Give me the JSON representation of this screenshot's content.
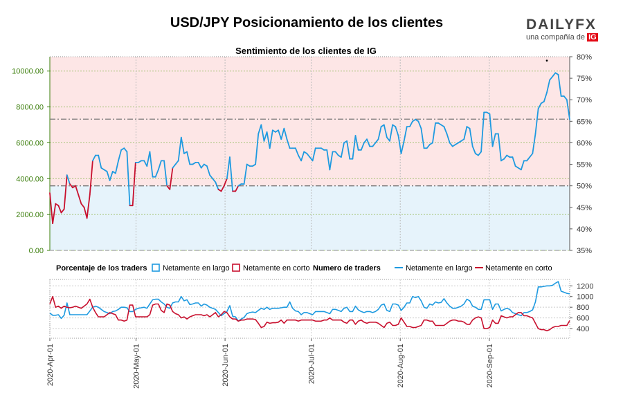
{
  "title": "USD/JPY Posicionamiento de los clientes",
  "logo": {
    "brand": "DAILYFX",
    "tagline": "una compañía de",
    "tagline_mark": "IG"
  },
  "colors": {
    "long": "#1e9ae0",
    "short": "#c8102e",
    "upper_fill": "#fde6e6",
    "lower_fill": "#e6f3fb",
    "left_axis": "#3a7d0a",
    "grid": "#a8c47a"
  },
  "chart_data": [
    {
      "type": "line",
      "title": "Sentimiento de los clientes de IG",
      "x_start": "2020-04-01",
      "x_end": "2020-09-29",
      "left_axis": {
        "ticks": [
          "0.00",
          "2000.00",
          "4000.00",
          "6000.00",
          "8000.00",
          "10000.00"
        ],
        "ylim": [
          0,
          10800
        ]
      },
      "right_axis": {
        "ticks": [
          "35%",
          "40%",
          "45%",
          "50%",
          "55%",
          "60%",
          "65%",
          "70%",
          "75%",
          "80%"
        ],
        "ylim": [
          35,
          80
        ]
      },
      "reference_lines": [
        50,
        65.5
      ],
      "series": [
        {
          "name": "price",
          "values": [
            3200,
            1500,
            2600,
            2500,
            2100,
            2300,
            4200,
            3700,
            3500,
            3600,
            3100,
            2600,
            2400,
            1800,
            3100,
            5000,
            5300,
            5300,
            4600,
            4500,
            4400,
            3900,
            4400,
            4300,
            5000,
            5600,
            5700,
            5500,
            2500,
            2500,
            4900,
            4900,
            5000,
            5000,
            4700,
            5500,
            4100,
            4100,
            4500,
            5000,
            5000,
            3600,
            3400,
            4600,
            4800,
            5000,
            6300,
            5400,
            5500,
            4800,
            4800,
            4900,
            4900,
            4600,
            4800,
            4700,
            4200,
            4000,
            3800,
            3400,
            3300,
            3600,
            4000,
            5200,
            3300,
            3300,
            3600,
            3700,
            3700,
            4800,
            4700,
            4700,
            4800,
            6500,
            7000,
            6100,
            6600,
            5700,
            6700,
            6600,
            6700,
            6200,
            6800,
            6200,
            5700,
            5700,
            5700,
            5300,
            5000,
            5500,
            5400,
            5200,
            5000,
            5700,
            5700,
            5700,
            5600,
            5600,
            4500,
            5500,
            5500,
            5300,
            5200,
            6000,
            6100,
            5100,
            5100,
            6400,
            5600,
            5600,
            6000,
            6200,
            5800,
            5800,
            6000,
            6200,
            6900,
            7000,
            6300,
            6100,
            7000,
            6900,
            6400,
            5400,
            6100,
            6900,
            6900,
            7200,
            7300,
            7200,
            6800,
            5700,
            5700,
            5900,
            6000,
            7100,
            7100,
            7000,
            6900,
            6500,
            6000,
            5800,
            5900,
            6000,
            6100,
            6200,
            6900,
            6800,
            5800,
            5400,
            5300,
            5500,
            7700,
            7700,
            7600,
            5800,
            6500,
            6500,
            5000,
            5100,
            5300,
            5200,
            5200,
            4700,
            4600,
            4500,
            5000,
            5000,
            5200,
            5400,
            6500,
            7900,
            8200,
            8300,
            8800,
            9500,
            9700,
            9900,
            9800,
            8600,
            8600,
            8400,
            7300
          ]
        },
        {
          "name": "long_pct_shown_by_color",
          "values": [
            38,
            40,
            45,
            44,
            42,
            43,
            55,
            47,
            46,
            46,
            45,
            44,
            43,
            42,
            45,
            55,
            56,
            56,
            53,
            53,
            52,
            51,
            52,
            52,
            55,
            58,
            58,
            57,
            44,
            44,
            54,
            54,
            55,
            55,
            53,
            56,
            51,
            51,
            53,
            55,
            55,
            48,
            47,
            53,
            54,
            55,
            60,
            57,
            58,
            55,
            55,
            55,
            55,
            53,
            54,
            54,
            52,
            51,
            50,
            49,
            48,
            49,
            51,
            57,
            49,
            49,
            50,
            50,
            51,
            54,
            54,
            54,
            54,
            60,
            65,
            61,
            62,
            59,
            63,
            63,
            63,
            61,
            64,
            61,
            58,
            58,
            58,
            56,
            55,
            57,
            57,
            56,
            55,
            58,
            58,
            58,
            57,
            57,
            54,
            56,
            56,
            55,
            55,
            59,
            60,
            55,
            55,
            60,
            57,
            57,
            59,
            60,
            58,
            58,
            59,
            60,
            63,
            64,
            60,
            59,
            64,
            63,
            61,
            56,
            59,
            64,
            64,
            65,
            65,
            64,
            63,
            58,
            58,
            59,
            59,
            64,
            64,
            64,
            64,
            62,
            60,
            58,
            58,
            59,
            59,
            60,
            64,
            63,
            58,
            56,
            55,
            56,
            67,
            67,
            66,
            58,
            61,
            61,
            55,
            56,
            56,
            56,
            56,
            54,
            53,
            53,
            55,
            55,
            56,
            57,
            62,
            69,
            70,
            70,
            72,
            74,
            75,
            76,
            75,
            70,
            70,
            69,
            66
          ]
        }
      ],
      "current_marker": "•"
    },
    {
      "type": "line",
      "title": "Numero de traders",
      "ylim": [
        220,
        1320
      ],
      "y_ticks": [
        "400",
        "600",
        "800",
        "1000",
        "1200"
      ],
      "x_ticks": [
        "2020-Apr-01",
        "2020-May-01",
        "2020-Jun-01",
        "2020-Jul-01",
        "2020-Aug-01",
        "2020-Sep-01"
      ],
      "series": [
        {
          "name": "Netamente en largo",
          "values": [
            690,
            650,
            650,
            660,
            590,
            650,
            880,
            660,
            660,
            660,
            660,
            660,
            660,
            660,
            730,
            800,
            820,
            800,
            760,
            720,
            700,
            680,
            720,
            730,
            760,
            800,
            800,
            790,
            720,
            720,
            760,
            780,
            790,
            800,
            780,
            860,
            940,
            950,
            950,
            900,
            860,
            800,
            780,
            880,
            900,
            900,
            1000,
            920,
            940,
            850,
            860,
            880,
            880,
            820,
            860,
            840,
            800,
            780,
            760,
            700,
            640,
            680,
            720,
            830,
            630,
            620,
            540,
            580,
            610,
            680,
            700,
            710,
            700,
            740,
            780,
            760,
            800,
            760,
            780,
            780,
            780,
            790,
            800,
            800,
            900,
            780,
            730,
            720,
            660,
            700,
            700,
            680,
            660,
            720,
            720,
            720,
            720,
            700,
            680,
            760,
            760,
            740,
            720,
            780,
            800,
            720,
            720,
            820,
            750,
            720,
            700,
            720,
            720,
            700,
            720,
            760,
            840,
            860,
            740,
            720,
            860,
            860,
            840,
            740,
            800,
            880,
            880,
            1000,
            980,
            1000,
            920,
            800,
            780,
            860,
            840,
            900,
            880,
            890,
            960,
            880,
            820,
            780,
            780,
            800,
            820,
            860,
            950,
            920,
            820,
            800,
            760,
            760,
            940,
            940,
            940,
            760,
            860,
            860,
            730,
            760,
            780,
            760,
            700,
            680,
            660,
            640,
            700,
            700,
            720,
            750,
            900,
            1180,
            1180,
            1190,
            1200,
            1200,
            1210,
            1250,
            1280,
            1100,
            1080,
            1060,
            1050
          ]
        },
        {
          "name": "Netamente en corto",
          "values": [
            860,
            1000,
            800,
            820,
            780,
            820,
            800,
            790,
            800,
            820,
            800,
            780,
            820,
            860,
            950,
            800,
            700,
            620,
            620,
            620,
            660,
            700,
            680,
            660,
            560,
            560,
            540,
            560,
            840,
            840,
            620,
            620,
            620,
            620,
            620,
            660,
            840,
            860,
            860,
            740,
            700,
            860,
            840,
            720,
            680,
            660,
            600,
            620,
            580,
            620,
            640,
            660,
            660,
            660,
            640,
            660,
            620,
            660,
            700,
            620,
            660,
            720,
            700,
            620,
            580,
            580,
            540,
            560,
            560,
            580,
            580,
            580,
            570,
            500,
            420,
            440,
            520,
            500,
            510,
            510,
            520,
            560,
            500,
            560,
            560,
            560,
            560,
            540,
            560,
            560,
            560,
            560,
            560,
            540,
            540,
            540,
            560,
            560,
            600,
            560,
            560,
            560,
            560,
            520,
            500,
            560,
            560,
            480,
            540,
            560,
            520,
            500,
            520,
            520,
            520,
            500,
            460,
            420,
            500,
            520,
            460,
            460,
            480,
            600,
            520,
            440,
            440,
            420,
            420,
            440,
            460,
            560,
            560,
            540,
            540,
            460,
            460,
            460,
            460,
            500,
            540,
            560,
            560,
            540,
            540,
            520,
            480,
            480,
            560,
            600,
            620,
            600,
            400,
            400,
            420,
            560,
            500,
            500,
            640,
            620,
            600,
            620,
            620,
            660,
            700,
            700,
            640,
            640,
            620,
            600,
            500,
            400,
            380,
            380,
            360,
            380,
            420,
            440,
            440,
            460,
            460,
            460,
            550
          ]
        }
      ]
    }
  ],
  "legend": {
    "percent_title": "Porcentaje de los traders",
    "percent_long": "Netamente en largo",
    "percent_short": "Netamente en corto",
    "count_title": "Numero de traders",
    "count_long": "Netamente en largo",
    "count_short": "Netamente en corto"
  }
}
